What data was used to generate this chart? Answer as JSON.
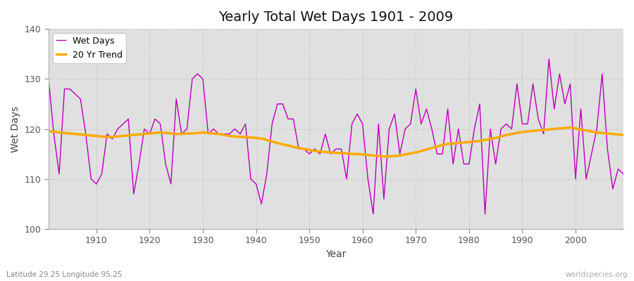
{
  "title": "Yearly Total Wet Days 1901 - 2009",
  "xlabel": "Year",
  "ylabel": "Wet Days",
  "bottom_left_label": "Latitude 29.25 Longitude 95.25",
  "bottom_right_label": "worldspecies.org",
  "ylim": [
    100,
    140
  ],
  "xlim": [
    1901,
    2009
  ],
  "line_color": "#bb00bb",
  "trend_color": "#ffaa00",
  "fig_bg_color": "#ffffff",
  "plot_bg_color": "#e0e0e0",
  "grid_color": "#cccccc",
  "legend_labels": [
    "Wet Days",
    "20 Yr Trend"
  ],
  "years": [
    1901,
    1902,
    1903,
    1904,
    1905,
    1906,
    1907,
    1908,
    1909,
    1910,
    1911,
    1912,
    1913,
    1914,
    1915,
    1916,
    1917,
    1918,
    1919,
    1920,
    1921,
    1922,
    1923,
    1924,
    1925,
    1926,
    1927,
    1928,
    1929,
    1930,
    1931,
    1932,
    1933,
    1934,
    1935,
    1936,
    1937,
    1938,
    1939,
    1940,
    1941,
    1942,
    1943,
    1944,
    1945,
    1946,
    1947,
    1948,
    1949,
    1950,
    1951,
    1952,
    1953,
    1954,
    1955,
    1956,
    1957,
    1958,
    1959,
    1960,
    1961,
    1962,
    1963,
    1964,
    1965,
    1966,
    1967,
    1968,
    1969,
    1970,
    1971,
    1972,
    1973,
    1974,
    1975,
    1976,
    1977,
    1978,
    1979,
    1980,
    1981,
    1982,
    1983,
    1984,
    1985,
    1986,
    1987,
    1988,
    1989,
    1990,
    1991,
    1992,
    1993,
    1994,
    1995,
    1996,
    1997,
    1998,
    1999,
    2000,
    2001,
    2002,
    2003,
    2004,
    2005,
    2006,
    2007,
    2008,
    2009
  ],
  "wet_days": [
    130,
    119,
    111,
    128,
    128,
    127,
    126,
    119,
    110,
    109,
    111,
    119,
    118,
    120,
    121,
    122,
    107,
    113,
    120,
    119,
    122,
    121,
    113,
    109,
    126,
    119,
    120,
    130,
    131,
    130,
    119,
    120,
    119,
    119,
    119,
    120,
    119,
    121,
    110,
    109,
    105,
    111,
    121,
    125,
    125,
    122,
    122,
    116,
    116,
    115,
    116,
    115,
    119,
    115,
    116,
    116,
    110,
    121,
    123,
    121,
    110,
    103,
    121,
    106,
    120,
    123,
    115,
    120,
    121,
    128,
    121,
    124,
    120,
    115,
    115,
    124,
    113,
    120,
    113,
    113,
    120,
    125,
    103,
    120,
    113,
    120,
    121,
    120,
    129,
    121,
    121,
    129,
    122,
    119,
    134,
    124,
    131,
    125,
    129,
    110,
    124,
    110,
    115,
    120,
    131,
    116,
    108,
    112,
    111
  ],
  "trend": [
    119.5,
    119.5,
    119.3,
    119.2,
    119.1,
    119.0,
    118.9,
    118.8,
    118.7,
    118.6,
    118.5,
    118.4,
    118.4,
    118.5,
    118.6,
    118.7,
    118.8,
    118.9,
    119.0,
    119.1,
    119.2,
    119.3,
    119.2,
    119.1,
    119.0,
    119.0,
    119.1,
    119.1,
    119.2,
    119.3,
    119.2,
    119.1,
    119.0,
    118.8,
    118.6,
    118.5,
    118.4,
    118.4,
    118.3,
    118.2,
    118.1,
    117.8,
    117.5,
    117.2,
    116.9,
    116.7,
    116.4,
    116.2,
    116.0,
    115.8,
    115.6,
    115.5,
    115.4,
    115.3,
    115.2,
    115.2,
    115.1,
    115.0,
    115.0,
    114.9,
    114.8,
    114.7,
    114.6,
    114.5,
    114.5,
    114.6,
    114.7,
    114.9,
    115.1,
    115.3,
    115.6,
    115.9,
    116.2,
    116.5,
    116.8,
    117.0,
    117.1,
    117.2,
    117.3,
    117.4,
    117.5,
    117.6,
    117.8,
    118.0,
    118.2,
    118.5,
    118.8,
    119.0,
    119.2,
    119.4,
    119.5,
    119.6,
    119.7,
    119.8,
    119.9,
    120.0,
    120.1,
    120.2,
    120.3,
    120.1,
    119.9,
    119.7,
    119.5,
    119.3,
    119.2,
    119.1,
    119.0,
    118.9,
    118.8
  ]
}
